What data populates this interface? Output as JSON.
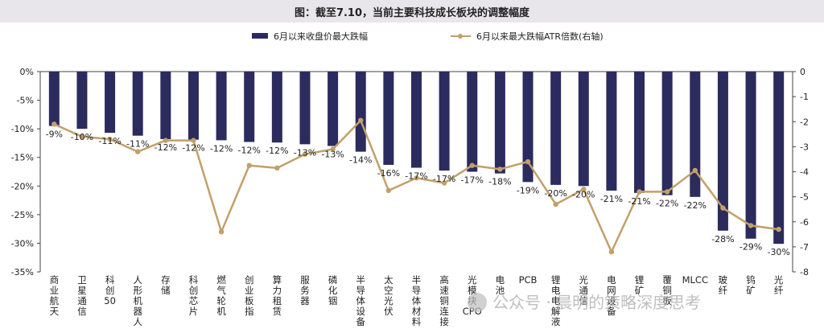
{
  "colors": {
    "bar": "#2b2b5e",
    "line": "#c2a06a",
    "title_bg": "#e8e6ea",
    "text": "#222222"
  },
  "watermark": "公众号 · 晨明的策略深度思考",
  "chart_data": {
    "type": "bar+line",
    "title": "图：截至7.10，当前主要科技成长板块的调整幅度",
    "categories": [
      "商业航天",
      "卫星通信",
      "科创50",
      "人形机器人",
      "存储",
      "科创芯片",
      "燃气轮机",
      "创业板指",
      "算力租赁",
      "服务器",
      "磷化铟",
      "半导体设备",
      "太空光伏",
      "半导体材料",
      "高速铜连接",
      "光模块CPO",
      "电池",
      "PCB",
      "锂电电解液",
      "光通信",
      "电网设备",
      "锂矿",
      "覆铜板",
      "MLCC",
      "玻纤",
      "钨矿",
      "光纤"
    ],
    "series": [
      {
        "name": "6月以来收盘价最大跌幅",
        "type": "bar",
        "axis": "left",
        "values": [
          -9.5,
          -10,
          -10.7,
          -11.2,
          -11.8,
          -11.9,
          -12,
          -12.3,
          -12.4,
          -12.7,
          -13,
          -14,
          -16.3,
          -16.8,
          -17.3,
          -17.5,
          -17.8,
          -19.3,
          -19.8,
          -20,
          -20.8,
          -21.2,
          -21.6,
          -21.9,
          -27.8,
          -29.2,
          -30.1
        ],
        "labels": [
          "-9%",
          "-10%",
          "-11%",
          "-11%",
          "-12%",
          "-12%",
          "-12%",
          "-12%",
          "-12%",
          "-13%",
          "-13%",
          "-14%",
          "-16%",
          "-17%",
          "-17%",
          "-17%",
          "-18%",
          "-19%",
          "-20%",
          "-20%",
          "-21%",
          "-21%",
          "-22%",
          "-22%",
          "-28%",
          "-29%",
          "-30%"
        ]
      },
      {
        "name": "6月以来最大跌幅ATR倍数(右轴)",
        "type": "line",
        "axis": "right",
        "values": [
          -2.1,
          -2.6,
          -2.7,
          -3.2,
          -2.75,
          -2.75,
          -6.4,
          -3.75,
          -3.85,
          -3.3,
          -3.1,
          -1.95,
          -4.75,
          -4.25,
          -4.45,
          -3.75,
          -3.9,
          -3.6,
          -5.3,
          -4.7,
          -7.2,
          -4.8,
          -4.8,
          -3.95,
          -5.45,
          -6.15,
          -6.3
        ]
      }
    ],
    "left_axis": {
      "range": [
        -35,
        0
      ],
      "ticks": [
        "0%",
        "-5%",
        "-10%",
        "-15%",
        "-20%",
        "-25%",
        "-30%",
        "-35%"
      ]
    },
    "right_axis": {
      "range": [
        -8,
        0
      ],
      "ticks": [
        "0",
        "-1",
        "-2",
        "-3",
        "-4",
        "-5",
        "-6",
        "-7",
        "-8"
      ]
    },
    "legend_position": "top-center",
    "grid": false
  }
}
